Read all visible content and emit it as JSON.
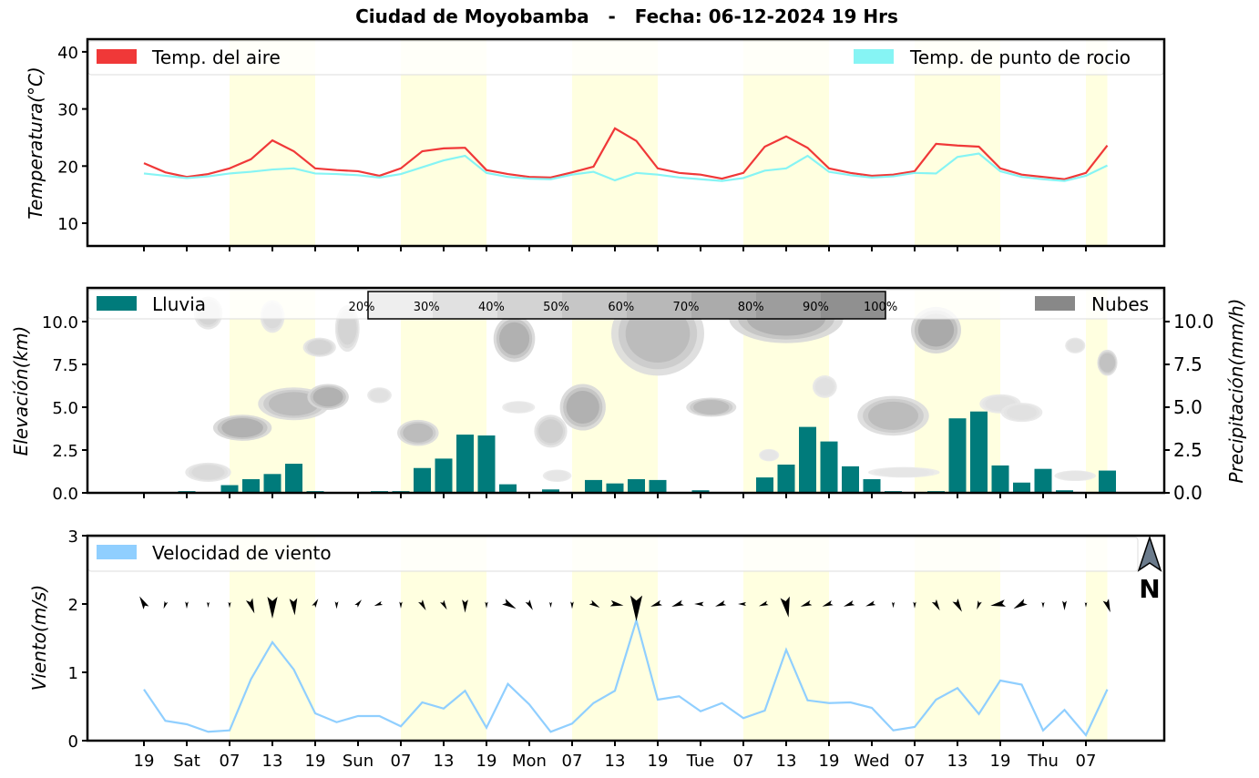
{
  "title": "Ciudad de Moyobamba   -   Fecha: 06-12-2024 19 Hrs",
  "colors": {
    "air": "#f03838",
    "dew": "#86f4f4",
    "rain": "#007b7b",
    "wind": "#90cfff",
    "day": "#ffffe0",
    "clouds": "#888888"
  },
  "x_tick_labels": [
    "19",
    "Sat",
    "07",
    "13",
    "19",
    "Sun",
    "07",
    "13",
    "19",
    "Mon",
    "07",
    "13",
    "19",
    "Tue",
    "07",
    "13",
    "19",
    "Wed",
    "07",
    "13",
    "19",
    "Thu",
    "07"
  ],
  "daylight_ranges_index": [
    [
      4,
      8
    ],
    [
      12,
      16
    ],
    [
      20,
      24
    ],
    [
      28,
      32
    ],
    [
      36,
      40
    ],
    [
      44,
      45
    ]
  ],
  "chart_data": [
    {
      "type": "line",
      "ylabel": "Temperatura(°C)",
      "ylim": [
        6,
        42
      ],
      "yticks": [
        "10",
        "20",
        "30",
        "40"
      ],
      "x_step_hours": 3,
      "series": [
        {
          "name": "Temp. del aire",
          "values": [
            20.5,
            18.9,
            18.1,
            18.6,
            19.6,
            21.2,
            24.5,
            22.6,
            19.6,
            19.3,
            19.1,
            18.3,
            19.6,
            22.6,
            23.1,
            23.2,
            19.3,
            18.6,
            18.1,
            18.0,
            18.9,
            19.9,
            26.6,
            24.4,
            19.6,
            18.8,
            18.5,
            17.8,
            18.8,
            23.4,
            25.2,
            23.2,
            19.6,
            18.8,
            18.3,
            18.5,
            19.1,
            23.9,
            23.6,
            23.4,
            19.6,
            18.5,
            18.1,
            17.7,
            18.8,
            23.6
          ]
        },
        {
          "name": "Temp. de punto de rocio",
          "values": [
            18.7,
            18.3,
            17.9,
            18.2,
            18.7,
            19.0,
            19.4,
            19.6,
            18.7,
            18.6,
            18.4,
            18.0,
            18.6,
            19.8,
            21.0,
            21.8,
            18.8,
            18.1,
            17.8,
            17.7,
            18.5,
            19.0,
            17.5,
            18.8,
            18.5,
            18.0,
            17.7,
            17.4,
            17.9,
            19.2,
            19.6,
            21.8,
            19.0,
            18.4,
            18.0,
            18.2,
            18.8,
            18.7,
            21.6,
            22.2,
            19.1,
            18.1,
            17.7,
            17.4,
            18.3,
            20.1
          ]
        }
      ]
    },
    {
      "type": "bar",
      "ylabel": "Elevación(km)",
      "ylabel_right": "Precipitación(mm/h)",
      "ylim": [
        0,
        12
      ],
      "yticks": [
        "0.0",
        "2.5",
        "5.0",
        "7.5",
        "10.0"
      ],
      "series": [
        {
          "name": "Lluvia",
          "values": [
            0,
            0,
            0.1,
            0.05,
            0.45,
            0.8,
            1.1,
            1.7,
            0.1,
            0,
            0,
            0.1,
            0.1,
            1.45,
            2.0,
            3.4,
            3.35,
            0.5,
            0.05,
            0.2,
            0.05,
            0.75,
            0.55,
            0.8,
            0.75,
            0,
            0.15,
            0.05,
            0.05,
            0.9,
            1.65,
            3.85,
            3.0,
            1.55,
            0.8,
            0.1,
            0.05,
            0.1,
            4.35,
            4.75,
            1.6,
            0.6,
            1.4,
            0.15,
            0.05,
            1.3
          ]
        },
        {
          "name": "Nubes",
          "patches": [
            {
              "x": 3,
              "km": 10.5,
              "rx": 0.5,
              "rk": 0.8,
              "pct": 40
            },
            {
              "x": 6,
              "km": 10.3,
              "rx": 0.4,
              "rk": 0.8,
              "pct": 35
            },
            {
              "x": 8.2,
              "km": 8.5,
              "rx": 0.6,
              "rk": 0.4,
              "pct": 40
            },
            {
              "x": 9.5,
              "km": 9.6,
              "rx": 0.4,
              "rk": 1.2,
              "pct": 40
            },
            {
              "x": 4.6,
              "km": 3.8,
              "rx": 1.2,
              "rk": 0.6,
              "pct": 70
            },
            {
              "x": 7,
              "km": 5.2,
              "rx": 1.5,
              "rk": 0.8,
              "pct": 60
            },
            {
              "x": 8.6,
              "km": 5.6,
              "rx": 0.8,
              "rk": 0.6,
              "pct": 70
            },
            {
              "x": 11,
              "km": 5.7,
              "rx": 0.4,
              "rk": 0.3,
              "pct": 30
            },
            {
              "x": 12.8,
              "km": 3.5,
              "rx": 0.8,
              "rk": 0.6,
              "pct": 60
            },
            {
              "x": 17.3,
              "km": 9.0,
              "rx": 0.8,
              "rk": 1.2,
              "pct": 70
            },
            {
              "x": 3,
              "km": 1.2,
              "rx": 0.9,
              "rk": 0.4,
              "pct": 35
            },
            {
              "x": 20.5,
              "km": 5.0,
              "rx": 0.9,
              "rk": 1.2,
              "pct": 70
            },
            {
              "x": 19,
              "km": 3.6,
              "rx": 0.6,
              "rk": 0.8,
              "pct": 45
            },
            {
              "x": 17.5,
              "km": 5.0,
              "rx": 0.6,
              "rk": 0.2,
              "pct": 25
            },
            {
              "x": 19.3,
              "km": 1.0,
              "rx": 0.5,
              "rk": 0.2,
              "pct": 25
            },
            {
              "x": 24,
              "km": 9.3,
              "rx": 2,
              "rk": 2.3,
              "pct": 60
            },
            {
              "x": 26.5,
              "km": 5.0,
              "rx": 1,
              "rk": 0.4,
              "pct": 60
            },
            {
              "x": 30,
              "km": 10.2,
              "rx": 2.5,
              "rk": 1.3,
              "pct": 70
            },
            {
              "x": 31.8,
              "km": 6.2,
              "rx": 0.4,
              "rk": 0.5,
              "pct": 30
            },
            {
              "x": 35,
              "km": 4.5,
              "rx": 1.5,
              "rk": 1,
              "pct": 60
            },
            {
              "x": 35.5,
              "km": 1.2,
              "rx": 1.5,
              "rk": 0.15,
              "pct": 25
            },
            {
              "x": 37,
              "km": 9.5,
              "rx": 1,
              "rk": 1.2,
              "pct": 75
            },
            {
              "x": 40,
              "km": 5.2,
              "rx": 0.8,
              "rk": 0.4,
              "pct": 30
            },
            {
              "x": 41,
              "km": 4.7,
              "rx": 0.8,
              "rk": 0.4,
              "pct": 30
            },
            {
              "x": 43.5,
              "km": 8.6,
              "rx": 0.3,
              "rk": 0.3,
              "pct": 30
            },
            {
              "x": 45,
              "km": 7.6,
              "rx": 0.3,
              "rk": 0.6,
              "pct": 55
            },
            {
              "x": 43.5,
              "km": 1.0,
              "rx": 0.8,
              "rk": 0.15,
              "pct": 25
            },
            {
              "x": 29.2,
              "km": 2.2,
              "rx": 0.3,
              "rk": 0.2,
              "pct": 25
            }
          ]
        }
      ],
      "colorbar_labels": [
        "20%",
        "30%",
        "40%",
        "50%",
        "60%",
        "70%",
        "80%",
        "90%",
        "100%"
      ]
    },
    {
      "type": "line",
      "ylabel": "Viento(m/s)",
      "ylim": [
        0,
        3
      ],
      "yticks": [
        "0",
        "1",
        "2",
        "3"
      ],
      "series": [
        {
          "name": "Velocidad de viento",
          "values": [
            0.75,
            0.29,
            0.24,
            0.13,
            0.15,
            0.9,
            1.44,
            1.04,
            0.4,
            0.27,
            0.36,
            0.36,
            0.21,
            0.56,
            0.47,
            0.73,
            0.19,
            0.83,
            0.53,
            0.13,
            0.25,
            0.55,
            0.73,
            1.76,
            0.6,
            0.65,
            0.43,
            0.55,
            0.33,
            0.44,
            1.33,
            0.59,
            0.55,
            0.56,
            0.48,
            0.15,
            0.2,
            0.6,
            0.77,
            0.39,
            0.88,
            0.82,
            0.15,
            0.45,
            0.08,
            0.75
          ]
        }
      ],
      "wind_direction_deg": [
        330,
        200,
        180,
        180,
        180,
        160,
        180,
        175,
        30,
        180,
        40,
        250,
        180,
        150,
        150,
        180,
        180,
        120,
        150,
        180,
        180,
        120,
        100,
        180,
        250,
        250,
        270,
        250,
        270,
        250,
        170,
        250,
        250,
        250,
        250,
        180,
        180,
        150,
        150,
        200,
        260,
        240,
        180,
        180,
        180,
        160
      ],
      "compass_label": "N"
    }
  ]
}
